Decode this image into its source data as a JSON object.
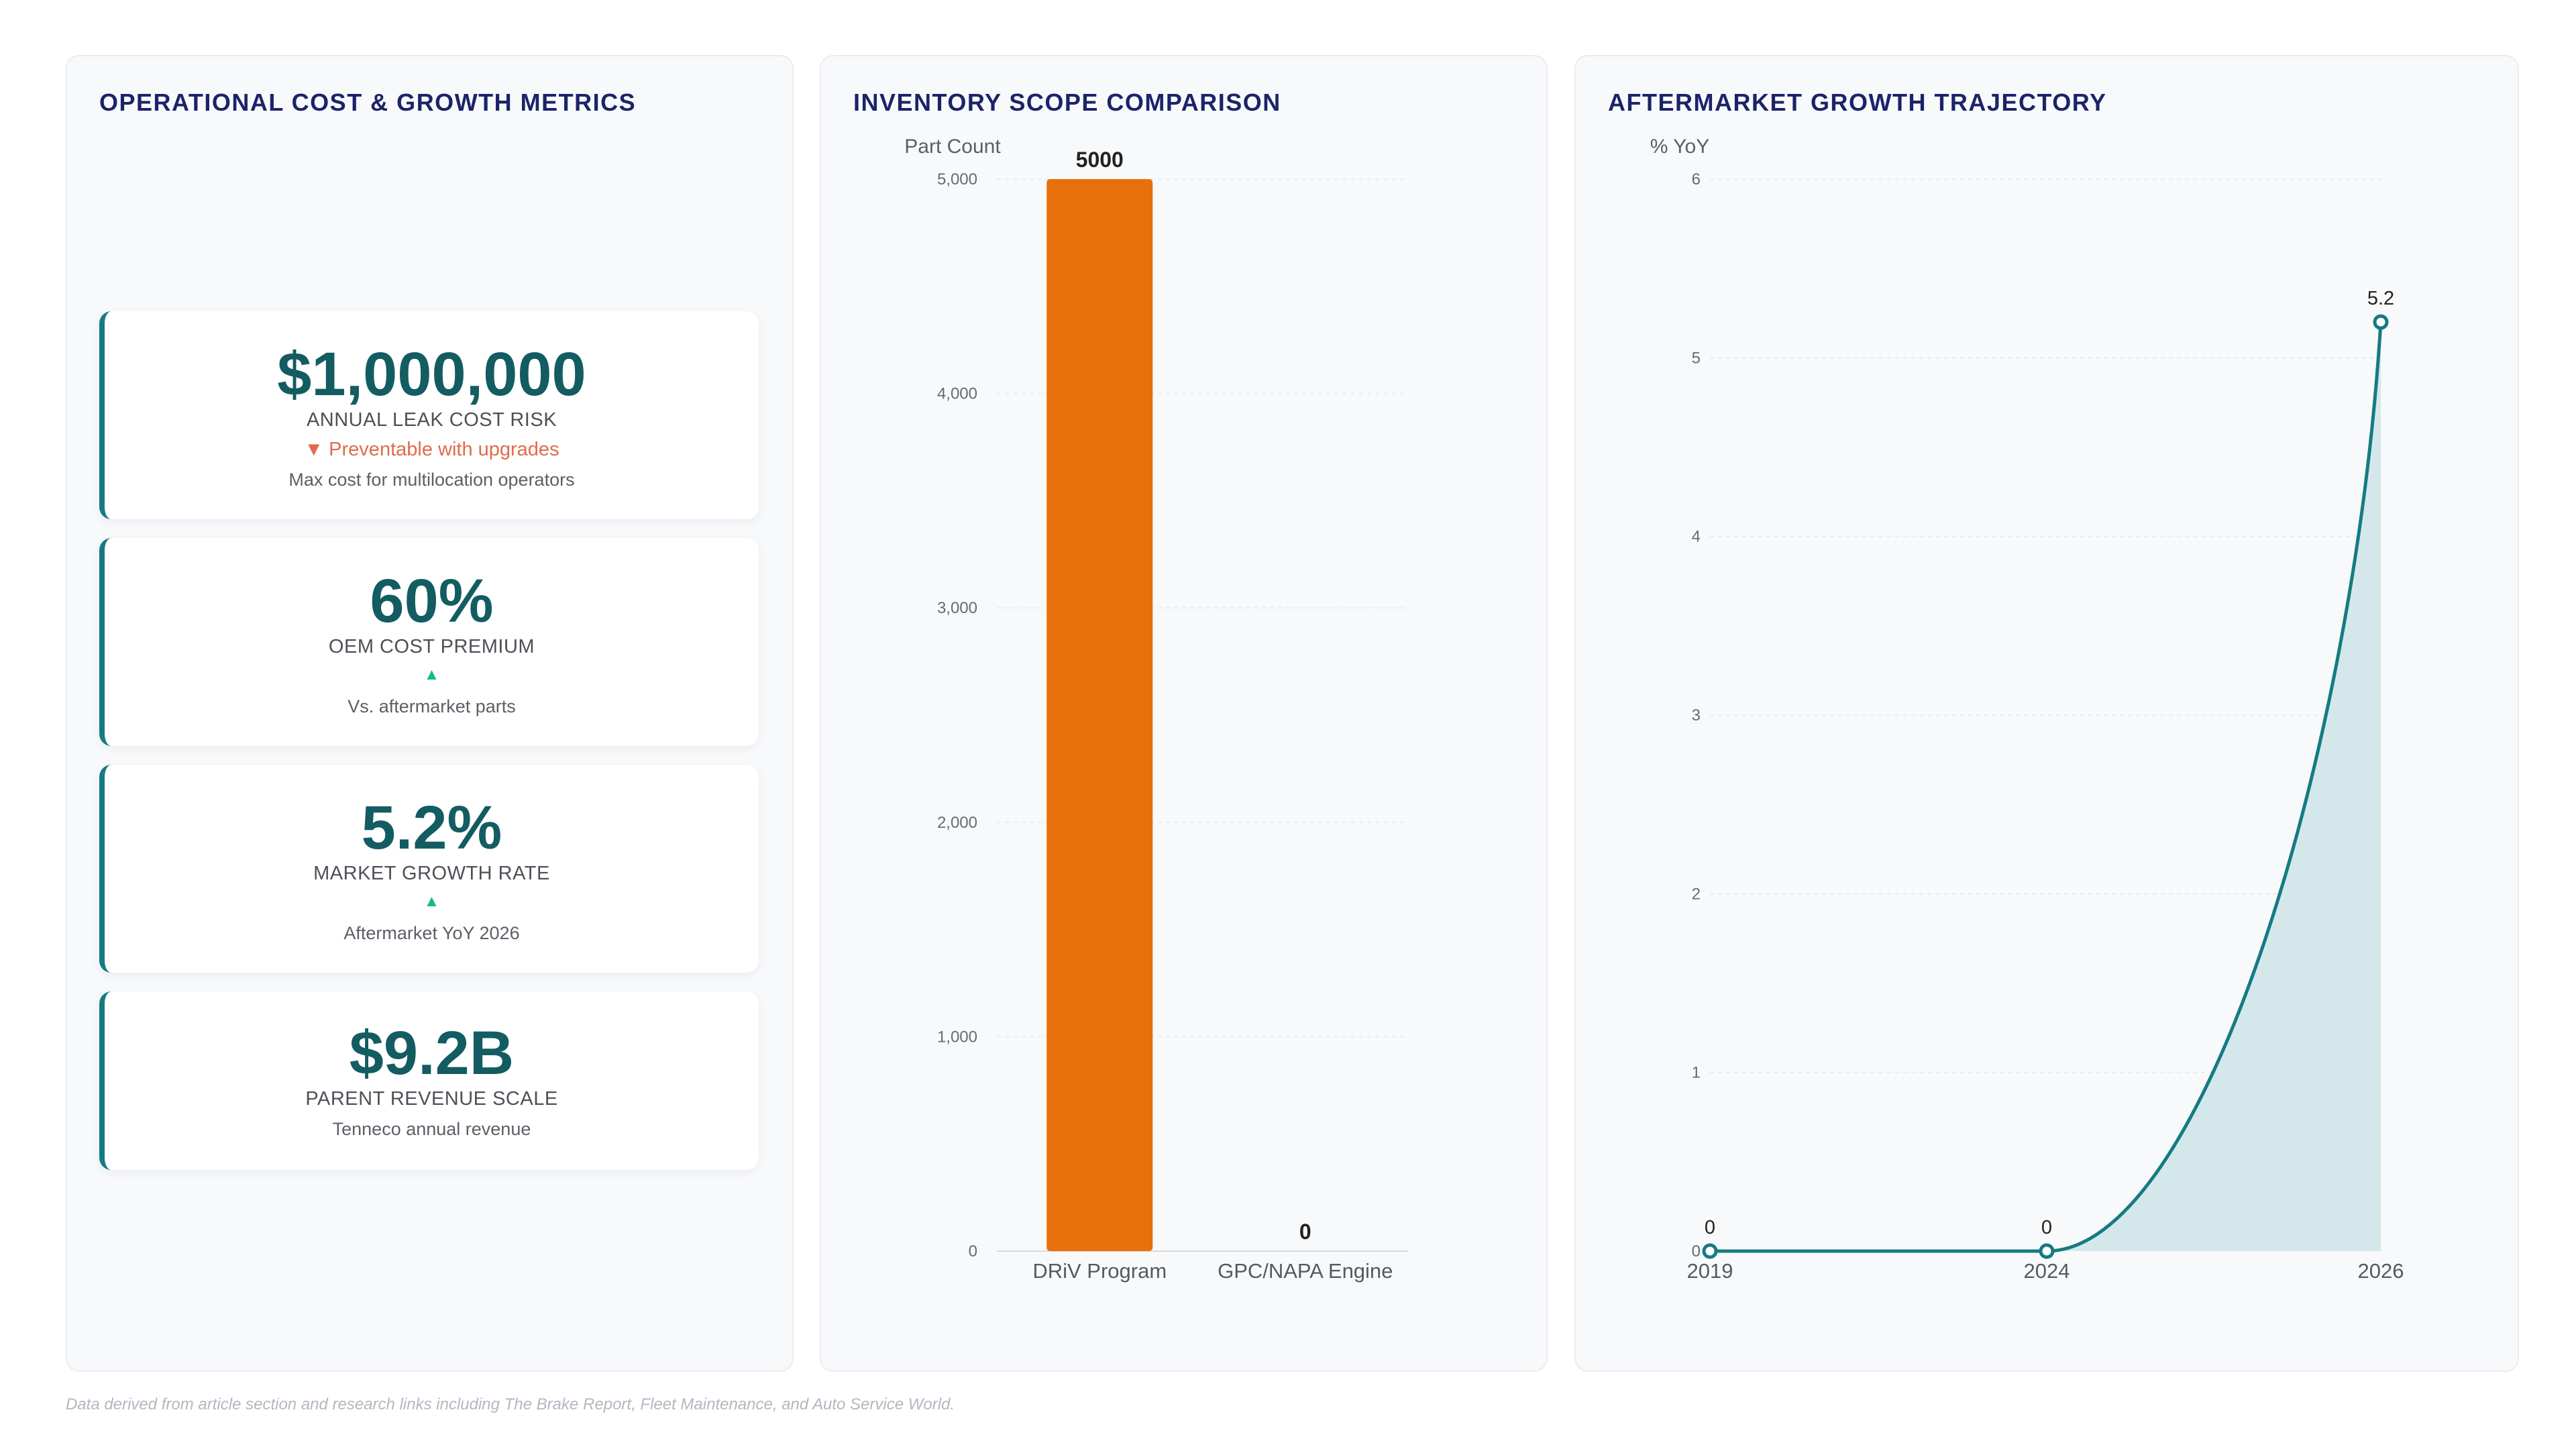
{
  "footnote": "Data derived from article section and research links including The Brake Report, Fleet Maintenance, and Auto Service World.",
  "colors": {
    "title": "#1b2469",
    "accent_teal": "#157b82",
    "kpi_value": "#135c62",
    "bar_orange": "#e8700a",
    "trend_down": "#e06b4a",
    "trend_up": "#17b98a",
    "area_fill": "#d4e8eb"
  },
  "kpi_panel": {
    "title": "OPERATIONAL COST & GROWTH METRICS",
    "cards": [
      {
        "value": "$1,000,000",
        "label": "ANNUAL LEAK COST RISK",
        "trend": "▼ Preventable with upgrades",
        "trend_direction": "down",
        "note": "Max cost for multilocation operators"
      },
      {
        "value": "60%",
        "label": "OEM COST PREMIUM",
        "trend": "▲",
        "trend_direction": "up",
        "note": "Vs. aftermarket parts"
      },
      {
        "value": "5.2%",
        "label": "MARKET GROWTH RATE",
        "trend": "▲",
        "trend_direction": "up",
        "note": "Aftermarket YoY 2026"
      },
      {
        "value": "$9.2B",
        "label": "PARENT REVENUE SCALE",
        "trend": "",
        "trend_direction": "none",
        "note": "Tenneco annual revenue"
      }
    ]
  },
  "bar_panel": {
    "title": "INVENTORY SCOPE COMPARISON"
  },
  "line_panel": {
    "title": "AFTERMARKET GROWTH TRAJECTORY"
  },
  "chart_data": [
    {
      "type": "bar",
      "title": "INVENTORY SCOPE COMPARISON",
      "ylabel": "Part Count",
      "categories": [
        "DRiV Program",
        "GPC/NAPA Engine"
      ],
      "values": [
        5000,
        0
      ],
      "data_labels": [
        "5000",
        "0"
      ],
      "ylim": [
        0,
        5000
      ],
      "yticks": [
        0,
        1000,
        2000,
        3000,
        4000,
        5000
      ],
      "ytick_labels": [
        "0",
        "1,000",
        "2,000",
        "3,000",
        "4,000",
        "5,000"
      ],
      "grid": true
    },
    {
      "type": "area",
      "title": "AFTERMARKET GROWTH TRAJECTORY",
      "ylabel": "% YoY",
      "x": [
        "2019",
        "2024",
        "2026"
      ],
      "values": [
        0,
        0,
        5.2
      ],
      "data_labels": [
        "0",
        "0",
        "5.2"
      ],
      "ylim": [
        0,
        6
      ],
      "yticks": [
        0,
        1,
        2,
        3,
        4,
        5,
        6
      ],
      "ytick_labels": [
        "0",
        "1",
        "2",
        "3",
        "4",
        "5",
        "6"
      ],
      "grid": true
    }
  ]
}
